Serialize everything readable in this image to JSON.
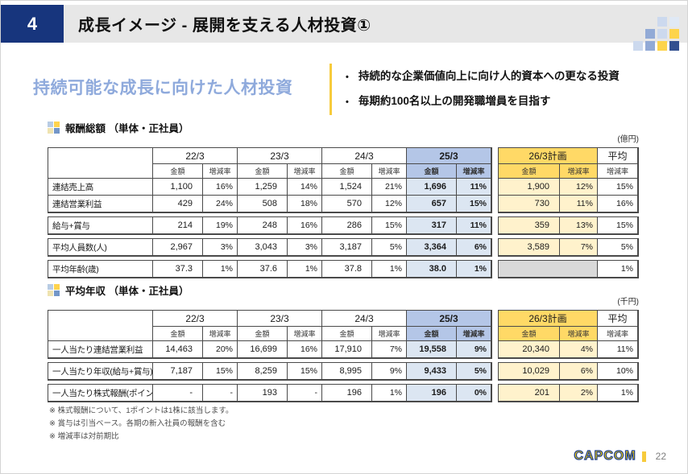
{
  "colors": {
    "navy": "#17357d",
    "barbg": "#e7e7e7",
    "headblue": "#8faadc",
    "divider": "#f7cb3c",
    "bluehead": "#b4c6e7",
    "bluecell": "#dce6f2",
    "yellowhead": "#ffd966",
    "yellowcell": "#fff2cc",
    "graycell": "#d9d9d9",
    "border": "#4a4a4a",
    "logoyellow": "#ffd400",
    "logooutline": "#1e3f8f"
  },
  "header": {
    "number": "4",
    "title": "成長イメージ - 展開を支える人材投資①"
  },
  "intro": {
    "heading": "持続可能な成長に向けた人材投資",
    "bullets": [
      "持続的な企業価値向上に向け人的資本への更なる投資",
      "毎期約100名以上の開発職増員を目指す"
    ]
  },
  "tables": [
    {
      "title": "報酬総額 （単体・正社員）",
      "unit": "(億円)",
      "year_columns": [
        "22/3",
        "23/3",
        "24/3",
        "25/3"
      ],
      "plan_column": "26/3計画",
      "avg_column": "平均",
      "sub_amount": "金額",
      "sub_rate": "増減率",
      "groups": [
        {
          "rows": [
            {
              "label": "連結売上高",
              "years": [
                [
                  "1,100",
                  "16%"
                ],
                [
                  "1,259",
                  "14%"
                ],
                [
                  "1,524",
                  "21%"
                ],
                [
                  "1,696",
                  "11%"
                ]
              ],
              "plan": [
                "1,900",
                "12%"
              ],
              "avg": "15%"
            },
            {
              "label": "連結営業利益",
              "years": [
                [
                  "429",
                  "24%"
                ],
                [
                  "508",
                  "18%"
                ],
                [
                  "570",
                  "12%"
                ],
                [
                  "657",
                  "15%"
                ]
              ],
              "plan": [
                "730",
                "11%"
              ],
              "avg": "16%"
            }
          ]
        },
        {
          "rows": [
            {
              "label": "給与+賞与",
              "years": [
                [
                  "214",
                  "19%"
                ],
                [
                  "248",
                  "16%"
                ],
                [
                  "286",
                  "15%"
                ],
                [
                  "317",
                  "11%"
                ]
              ],
              "plan": [
                "359",
                "13%"
              ],
              "avg": "15%"
            }
          ]
        },
        {
          "rows": [
            {
              "label": "平均人員数(人)",
              "years": [
                [
                  "2,967",
                  "3%"
                ],
                [
                  "3,043",
                  "3%"
                ],
                [
                  "3,187",
                  "5%"
                ],
                [
                  "3,364",
                  "6%"
                ]
              ],
              "plan": [
                "3,589",
                "7%"
              ],
              "avg": "5%"
            }
          ]
        },
        {
          "rows": [
            {
              "label": "平均年齢(歳)",
              "years": [
                [
                  "37.3",
                  "1%"
                ],
                [
                  "37.6",
                  "1%"
                ],
                [
                  "37.8",
                  "1%"
                ],
                [
                  "38.0",
                  "1%"
                ]
              ],
              "plan": null,
              "avg": "1%"
            }
          ]
        }
      ]
    },
    {
      "title": "平均年収 （単体・正社員）",
      "unit": "(千円)",
      "year_columns": [
        "22/3",
        "23/3",
        "24/3",
        "25/3"
      ],
      "plan_column": "26/3計画",
      "avg_column": "平均",
      "sub_amount": "金額",
      "sub_rate": "増減率",
      "groups": [
        {
          "rows": [
            {
              "label": "一人当たり連結営業利益",
              "years": [
                [
                  "14,463",
                  "20%"
                ],
                [
                  "16,699",
                  "16%"
                ],
                [
                  "17,910",
                  "7%"
                ],
                [
                  "19,558",
                  "9%"
                ]
              ],
              "plan": [
                "20,340",
                "4%"
              ],
              "avg": "11%"
            }
          ]
        },
        {
          "rows": [
            {
              "label": "一人当たり年収(給与+賞与)",
              "years": [
                [
                  "7,187",
                  "15%"
                ],
                [
                  "8,259",
                  "15%"
                ],
                [
                  "8,995",
                  "9%"
                ],
                [
                  "9,433",
                  "5%"
                ]
              ],
              "plan": [
                "10,029",
                "6%"
              ],
              "avg": "10%"
            }
          ]
        },
        {
          "rows": [
            {
              "label": "一人当たり株式報酬(ポイント)",
              "years": [
                [
                  "-",
                  "-"
                ],
                [
                  "193",
                  "-"
                ],
                [
                  "196",
                  "1%"
                ],
                [
                  "196",
                  "0%"
                ]
              ],
              "plan": [
                "201",
                "2%"
              ],
              "avg": "1%"
            }
          ]
        }
      ]
    }
  ],
  "notes": [
    "※ 株式報酬について、1ポイントは1株に該当します。",
    "※ 賞与は引当ベース。各期の新入社員の報酬を含む",
    "※ 増減率は対前期比"
  ],
  "footer": {
    "logo": "CAPCOM",
    "page": "22"
  },
  "icons": {
    "deco_grid": [
      [
        null,
        null,
        "#ccd9ee",
        "#e0e9f5"
      ],
      [
        null,
        "#92aad6",
        "#ccd9ee",
        "#fdd44c"
      ],
      [
        "#ccd9ee",
        "#92aad6",
        "#fdd44c",
        "#33508f"
      ]
    ],
    "title_grid": [
      [
        "#b8cce4",
        "#ffd34d"
      ],
      [
        "#efe3b0",
        "#7396c8"
      ]
    ]
  }
}
